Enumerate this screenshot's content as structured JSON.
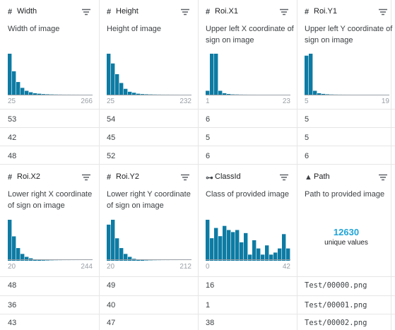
{
  "sections": [
    {
      "columns": [
        {
          "type_icon": "#",
          "type_icon_name": "numeric-type-icon",
          "name": "Width",
          "description": "Width of image",
          "hist_values": [
            42,
            24,
            13,
            7,
            4,
            2.5,
            1.5,
            1,
            0.6,
            0.4,
            0.25,
            0.15,
            0.1,
            0.05,
            0.05,
            0.03,
            0.02,
            0.01,
            0.01,
            0.01
          ],
          "range_min": "25",
          "range_max": "266",
          "rows": [
            "53",
            "42",
            "48"
          ]
        },
        {
          "type_icon": "#",
          "type_icon_name": "numeric-type-icon",
          "name": "Height",
          "description": "Height of image",
          "hist_values": [
            42,
            32,
            21,
            12,
            6,
            3,
            2,
            1,
            0.6,
            0.4,
            0.25,
            0.15,
            0.1,
            0.05,
            0.05,
            0.03,
            0.02,
            0.01,
            0.01,
            0.01
          ],
          "range_min": "25",
          "range_max": "232",
          "rows": [
            "54",
            "45",
            "52"
          ]
        },
        {
          "type_icon": "#",
          "type_icon_name": "numeric-type-icon",
          "name": "Roi.X1",
          "description": "Upper left X coordinate of sign on image",
          "hist_values": [
            4,
            42,
            42,
            4,
            1.5,
            0.7,
            0.3,
            0.2,
            0.1,
            0.05,
            0.03,
            0.02,
            0.01,
            0.01,
            0.01,
            0.01,
            0.01,
            0.01,
            0.01,
            0.01
          ],
          "range_min": "1",
          "range_max": "23",
          "rows": [
            "6",
            "5",
            "6"
          ]
        },
        {
          "type_icon": "#",
          "type_icon_name": "numeric-type-icon",
          "name": "Roi.Y1",
          "description": "Upper left Y coordinate of sign on image",
          "hist_values": [
            40,
            42,
            4,
            1.5,
            0.8,
            0.4,
            0.2,
            0.1,
            0.05,
            0.03,
            0.02,
            0.01,
            0.01,
            0.01,
            0.01,
            0.01,
            0.01,
            0.01,
            0.01,
            0.01
          ],
          "range_min": "5",
          "range_max": "19",
          "rows": [
            "5",
            "5",
            "6"
          ]
        }
      ]
    },
    {
      "columns": [
        {
          "type_icon": "#",
          "type_icon_name": "numeric-type-icon",
          "name": "Roi.X2",
          "description": "Lower right X coordinate of sign on image",
          "hist_values": [
            42,
            25,
            13,
            7,
            4,
            2.5,
            1.5,
            1,
            0.6,
            0.4,
            0.25,
            0.15,
            0.1,
            0.05,
            0.05,
            0.03,
            0.02,
            0.01,
            0.01,
            0.01
          ],
          "range_min": "20",
          "range_max": "244",
          "rows": [
            "48",
            "36",
            "43"
          ]
        },
        {
          "type_icon": "#",
          "type_icon_name": "numeric-type-icon",
          "name": "Roi.Y2",
          "description": "Lower right Y coordinate of sign on image",
          "hist_values": [
            37,
            42,
            23,
            13,
            7,
            4,
            2,
            1.2,
            0.7,
            0.4,
            0.25,
            0.15,
            0.1,
            0.05,
            0.05,
            0.03,
            0.02,
            0.01,
            0.01,
            0.01
          ],
          "range_min": "20",
          "range_max": "212",
          "rows": [
            "49",
            "40",
            "47"
          ]
        },
        {
          "type_icon": "⊶",
          "type_icon_name": "id-type-icon",
          "name": "ClassId",
          "description": "Class of provided image",
          "hist_values": [
            40,
            22,
            32,
            24,
            34,
            30,
            28,
            30,
            18,
            27,
            6,
            20,
            12,
            6,
            15,
            6,
            8,
            12,
            26,
            12
          ],
          "range_min": "0",
          "range_max": "42",
          "rows": [
            "16",
            "1",
            "38"
          ]
        },
        {
          "type_icon": "▲",
          "type_icon_name": "string-type-icon",
          "name": "Path",
          "description": "Path to provided image",
          "unique_count": "12630",
          "unique_label": "unique values",
          "rows": [
            "Test/00000.png",
            "Test/00001.png",
            "Test/00002.png"
          ]
        }
      ]
    }
  ],
  "colors": {
    "bar": "#0d7ba3",
    "unique_count": "#20a4d8",
    "grid_line": "#e6e6e6"
  }
}
